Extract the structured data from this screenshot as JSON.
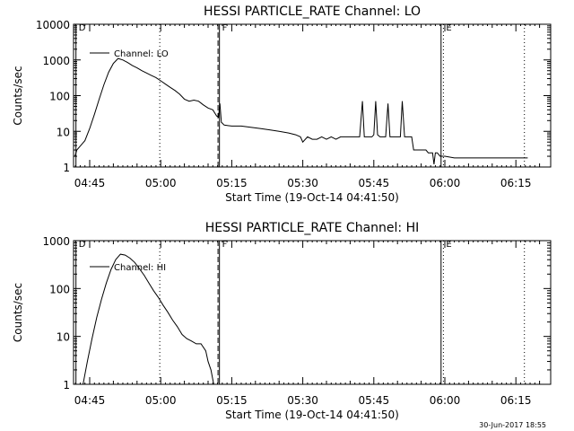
{
  "footer_date": "30-Jun-2017 18:55",
  "chart_data": [
    {
      "type": "line",
      "title": "HESSI PARTICLE_RATE Channel: LO",
      "xlabel": "Start Time (19-Oct-14 04:41:50)",
      "ylabel": "Counts/sec",
      "y_scale": "log",
      "ylim": [
        1,
        10000
      ],
      "y_ticks": [
        "1",
        "10",
        "100",
        "1000",
        "10000"
      ],
      "xlim_minutes": [
        41.83,
        120.8
      ],
      "x_ticks": [
        {
          "label": "04:45",
          "minute": 45
        },
        {
          "label": "05:00",
          "minute": 60
        },
        {
          "label": "05:15",
          "minute": 75
        },
        {
          "label": "05:30",
          "minute": 90
        },
        {
          "label": "05:45",
          "minute": 105
        },
        {
          "label": "06:00",
          "minute": 120
        },
        {
          "label": "06:15",
          "minute": 135
        }
      ],
      "legend": "Channel: LO",
      "markers": [
        {
          "label": "D",
          "minute": 42.1,
          "style": "solid"
        },
        {
          "label": "",
          "minute": 59.8,
          "style": "dotted"
        },
        {
          "label": "",
          "minute": 72.1,
          "style": "dashed"
        },
        {
          "label": "F",
          "minute": 72.4,
          "style": "solid"
        },
        {
          "label": "",
          "minute": 119.2,
          "style": "solid"
        },
        {
          "label": "E",
          "minute": 119.7,
          "style": "dotted"
        },
        {
          "label": "",
          "minute": 136.8,
          "style": "dotted"
        }
      ],
      "series": [
        {
          "x": [
            41.9,
            42.3,
            43.1,
            44.0,
            45.0,
            46.0,
            47.0,
            48.0,
            49.0,
            50.0,
            51.0,
            52.0,
            53.0,
            54.0,
            55.0,
            56.0,
            57.0,
            58.0,
            59.0,
            60.0,
            61.0,
            62.0,
            63.0,
            64.0,
            65.0,
            66.0,
            67.0,
            68.0,
            69.0,
            70.0,
            71.0,
            71.8,
            72.2,
            72.5,
            72.8,
            73.4,
            75.0,
            77.0,
            79.0,
            81.0,
            83.0,
            85.0,
            87.0,
            88.5,
            89.5,
            90.0,
            91.0,
            92.0,
            93.0,
            94.0,
            95.0,
            96.0,
            97.0,
            98.0,
            99.0,
            100.0,
            101.0,
            102.0,
            102.6,
            103.0,
            103.4,
            104.0,
            104.6,
            105.0,
            105.4,
            105.8,
            106.3,
            107.0,
            107.5,
            108.0,
            108.4,
            108.9,
            109.4,
            110.0,
            110.6,
            111.0,
            111.5,
            112.0,
            112.5,
            113.0,
            113.4,
            113.8,
            114.4,
            115.0,
            115.5,
            116.0,
            116.5,
            117.0,
            117.4,
            117.7,
            118.0,
            118.4,
            119.0,
            119.5,
            120.0,
            122.0,
            124.0,
            125.0,
            126.0,
            126.5,
            127.0,
            127.4,
            127.8,
            128.3,
            128.8,
            129.3,
            129.8,
            130.3,
            130.8,
            131.3,
            132.0,
            133.0,
            134.0,
            135.0,
            136.0,
            137.0,
            137.5
          ],
          "y": [
            2,
            3,
            4,
            5.5,
            12,
            30,
            80,
            200,
            450,
            800,
            1100,
            1000,
            850,
            700,
            600,
            500,
            430,
            370,
            320,
            260,
            210,
            170,
            140,
            110,
            80,
            70,
            75,
            70,
            55,
            45,
            40,
            27,
            25,
            60,
            18,
            15,
            14,
            14,
            13,
            12,
            11,
            10,
            9,
            8,
            7,
            5,
            7,
            6,
            6,
            7,
            6,
            7,
            6,
            7,
            7,
            7,
            7,
            7,
            70,
            7,
            7,
            7,
            7,
            8,
            70,
            8,
            7,
            7,
            7,
            60,
            7,
            7,
            7,
            7,
            7,
            70,
            7,
            7,
            7,
            7,
            3,
            3,
            3,
            3,
            3,
            3,
            2.5,
            2.5,
            2.5,
            1.2,
            2.5,
            2.5,
            2,
            2,
            2,
            1.8,
            1.8,
            1.8,
            1.8,
            1.8,
            1.8,
            1.8,
            1.8,
            1.8,
            1.8,
            1.8,
            1.8,
            1.8,
            1.8,
            1.8,
            1.8,
            1.8,
            1.8,
            1.8,
            1.8,
            1.8,
            1.8
          ]
        }
      ]
    },
    {
      "type": "line",
      "title": "HESSI PARTICLE_RATE Channel: HI",
      "xlabel": "Start Time (19-Oct-14 04:41:50)",
      "ylabel": "Counts/sec",
      "y_scale": "log",
      "ylim": [
        1,
        1000
      ],
      "y_ticks": [
        "1",
        "10",
        "100",
        "1000"
      ],
      "xlim_minutes": [
        41.83,
        120.8
      ],
      "x_ticks": [
        {
          "label": "04:45",
          "minute": 45
        },
        {
          "label": "05:00",
          "minute": 60
        },
        {
          "label": "05:15",
          "minute": 75
        },
        {
          "label": "05:30",
          "minute": 90
        },
        {
          "label": "05:45",
          "minute": 105
        },
        {
          "label": "06:00",
          "minute": 120
        },
        {
          "label": "06:15",
          "minute": 135
        }
      ],
      "legend": "Channel: HI",
      "markers": [
        {
          "label": "D",
          "minute": 42.1,
          "style": "solid"
        },
        {
          "label": "",
          "minute": 59.8,
          "style": "dotted"
        },
        {
          "label": "",
          "minute": 72.1,
          "style": "dashed"
        },
        {
          "label": "F",
          "minute": 72.4,
          "style": "solid"
        },
        {
          "label": "",
          "minute": 119.2,
          "style": "solid"
        },
        {
          "label": "E",
          "minute": 119.7,
          "style": "dotted"
        },
        {
          "label": "",
          "minute": 136.8,
          "style": "dotted"
        }
      ],
      "series": [
        {
          "x": [
            43.6,
            44.5,
            45.5,
            46.5,
            47.5,
            48.5,
            49.5,
            50.5,
            51.5,
            52.5,
            53.5,
            54.5,
            55.5,
            56.5,
            57.5,
            58.5,
            59.5,
            60.5,
            61.5,
            62.5,
            63.5,
            64.5,
            65.5,
            66.5,
            67.5,
            68.5,
            69.5,
            70.0,
            70.6,
            71.2
          ],
          "y": [
            1,
            3,
            9,
            25,
            60,
            130,
            250,
            400,
            520,
            500,
            430,
            350,
            260,
            190,
            130,
            90,
            65,
            45,
            32,
            22,
            16,
            11,
            9,
            8,
            7,
            7,
            5,
            3,
            2,
            1
          ]
        }
      ]
    }
  ]
}
